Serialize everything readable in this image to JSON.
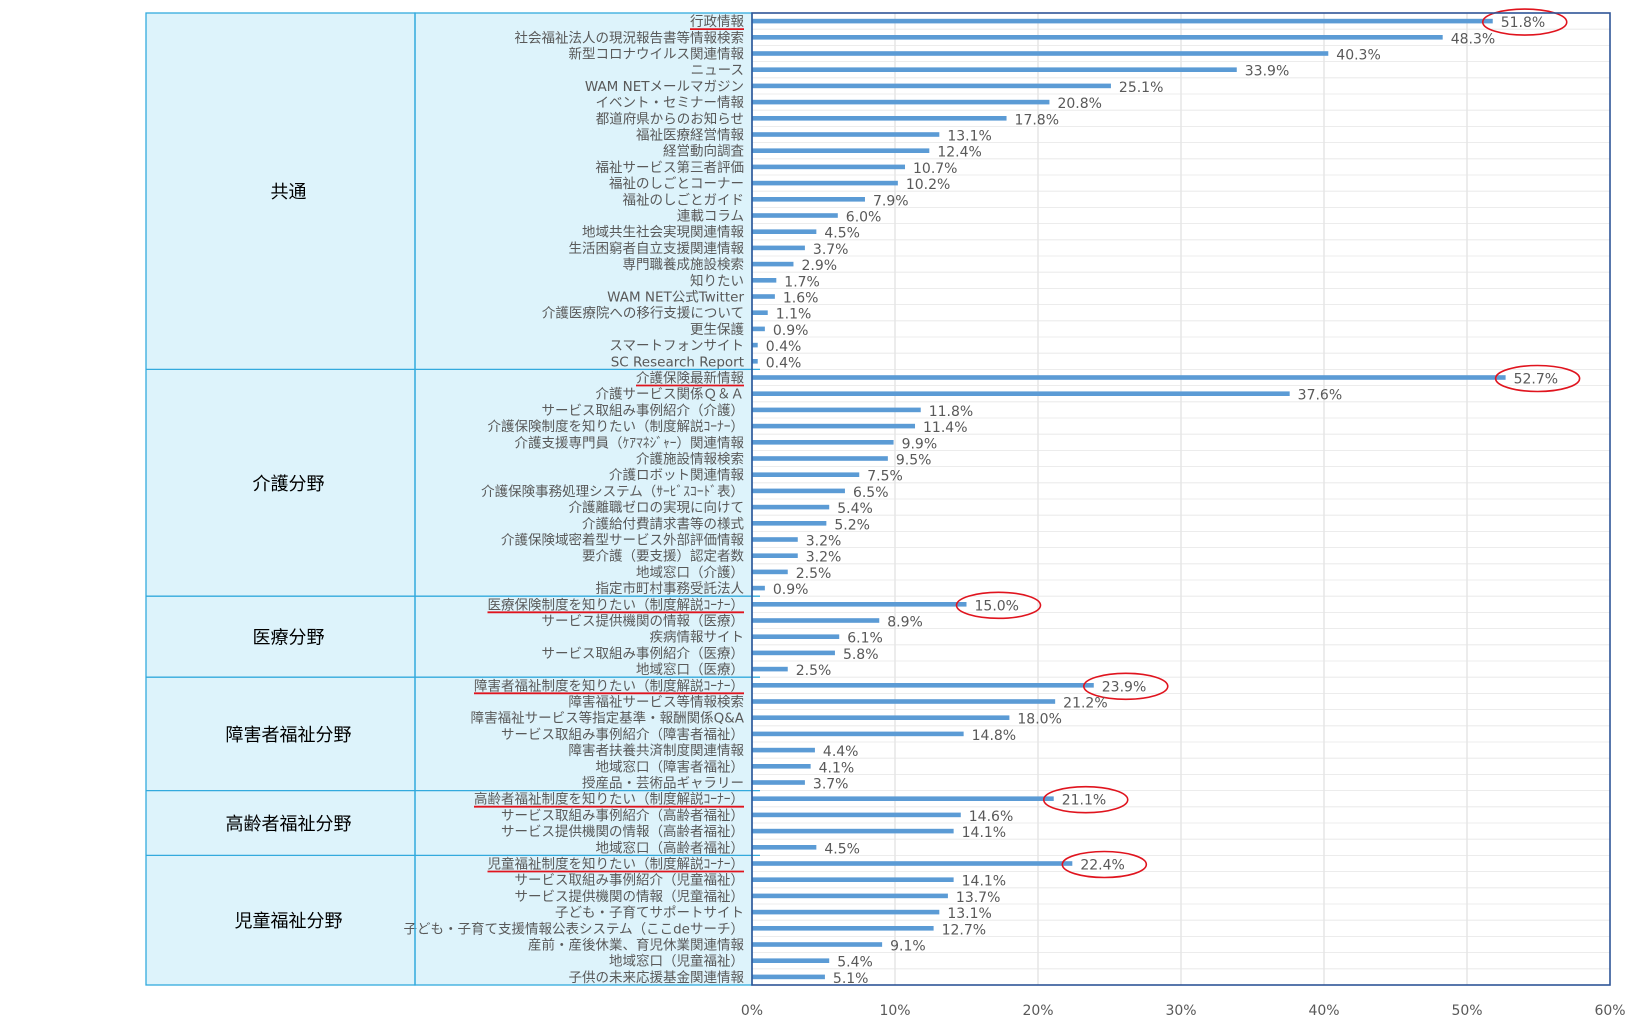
{
  "chart_data": {
    "type": "bar",
    "orientation": "horizontal",
    "xlim": [
      0,
      60
    ],
    "x_ticks": [
      "0%",
      "10%",
      "20%",
      "30%",
      "40%",
      "50%",
      "60%"
    ],
    "grid": "vertical",
    "bar_color": "#5b9bd5",
    "highlight_color": "#e0141e",
    "group_bg_color": "#ddf3fb",
    "group_border_color": "#33aadd",
    "groups": [
      {
        "name": "共通",
        "items": [
          {
            "label": "行政情報",
            "value": 51.8,
            "value_label": "51.8%",
            "highlight": true
          },
          {
            "label": "社会福祉法人の現況報告書等情報検索",
            "value": 48.3,
            "value_label": "48.3%"
          },
          {
            "label": "新型コロナウイルス関連情報",
            "value": 40.3,
            "value_label": "40.3%"
          },
          {
            "label": "ニュース",
            "value": 33.9,
            "value_label": "33.9%"
          },
          {
            "label": "WAM NETメールマガジン",
            "value": 25.1,
            "value_label": "25.1%"
          },
          {
            "label": "イベント・セミナー情報",
            "value": 20.8,
            "value_label": "20.8%"
          },
          {
            "label": "都道府県からのお知らせ",
            "value": 17.8,
            "value_label": "17.8%"
          },
          {
            "label": "福祉医療経営情報",
            "value": 13.1,
            "value_label": "13.1%"
          },
          {
            "label": "経営動向調査",
            "value": 12.4,
            "value_label": "12.4%"
          },
          {
            "label": "福祉サービス第三者評価",
            "value": 10.7,
            "value_label": "10.7%"
          },
          {
            "label": "福祉のしごとコーナー",
            "value": 10.2,
            "value_label": "10.2%"
          },
          {
            "label": "福祉のしごとガイド",
            "value": 7.9,
            "value_label": "7.9%"
          },
          {
            "label": "連載コラム",
            "value": 6.0,
            "value_label": "6.0%"
          },
          {
            "label": "地域共生社会実現関連情報",
            "value": 4.5,
            "value_label": "4.5%"
          },
          {
            "label": "生活困窮者自立支援関連情報",
            "value": 3.7,
            "value_label": "3.7%"
          },
          {
            "label": "専門職養成施設検索",
            "value": 2.9,
            "value_label": "2.9%"
          },
          {
            "label": "知りたい",
            "value": 1.7,
            "value_label": "1.7%"
          },
          {
            "label": "WAM NET公式Twitter",
            "value": 1.6,
            "value_label": "1.6%"
          },
          {
            "label": "介護医療院への移行支援について",
            "value": 1.1,
            "value_label": "1.1%"
          },
          {
            "label": "更生保護",
            "value": 0.9,
            "value_label": "0.9%"
          },
          {
            "label": "スマートフォンサイト",
            "value": 0.4,
            "value_label": "0.4%"
          },
          {
            "label": "SC Research Report",
            "value": 0.4,
            "value_label": "0.4%"
          }
        ]
      },
      {
        "name": "介護分野",
        "items": [
          {
            "label": "介護保険最新情報",
            "value": 52.7,
            "value_label": "52.7%",
            "highlight": true
          },
          {
            "label": "介護サービス関係Ｑ＆Ａ",
            "value": 37.6,
            "value_label": "37.6%"
          },
          {
            "label": "サービス取組み事例紹介（介護）",
            "value": 11.8,
            "value_label": "11.8%"
          },
          {
            "label": "介護保険制度を知りたい（制度解説ｺｰﾅｰ）",
            "value": 11.4,
            "value_label": "11.4%"
          },
          {
            "label": "介護支援専門員（ｹｱﾏﾈｼﾞｬｰ）関連情報",
            "value": 9.9,
            "value_label": "9.9%"
          },
          {
            "label": "介護施設情報検索",
            "value": 9.5,
            "value_label": "9.5%"
          },
          {
            "label": "介護ロボット関連情報",
            "value": 7.5,
            "value_label": "7.5%"
          },
          {
            "label": "介護保険事務処理システム（ｻｰﾋﾞｽｺｰﾄﾞ表）",
            "value": 6.5,
            "value_label": "6.5%"
          },
          {
            "label": "介護離職ゼロの実現に向けて",
            "value": 5.4,
            "value_label": "5.4%"
          },
          {
            "label": "介護給付費請求書等の様式",
            "value": 5.2,
            "value_label": "5.2%"
          },
          {
            "label": "介護保険域密着型サービス外部評価情報",
            "value": 3.2,
            "value_label": "3.2%"
          },
          {
            "label": "要介護（要支援）認定者数",
            "value": 3.2,
            "value_label": "3.2%"
          },
          {
            "label": "地域窓口（介護）",
            "value": 2.5,
            "value_label": "2.5%"
          },
          {
            "label": "指定市町村事務受託法人",
            "value": 0.9,
            "value_label": "0.9%"
          }
        ]
      },
      {
        "name": "医療分野",
        "items": [
          {
            "label": "医療保険制度を知りたい（制度解説ｺｰﾅｰ）",
            "value": 15.0,
            "value_label": "15.0%",
            "highlight": true
          },
          {
            "label": "サービス提供機関の情報（医療）",
            "value": 8.9,
            "value_label": "8.9%"
          },
          {
            "label": "疾病情報サイト",
            "value": 6.1,
            "value_label": "6.1%"
          },
          {
            "label": "サービス取組み事例紹介（医療）",
            "value": 5.8,
            "value_label": "5.8%"
          },
          {
            "label": "地域窓口（医療）",
            "value": 2.5,
            "value_label": "2.5%"
          }
        ]
      },
      {
        "name": "障害者福祉分野",
        "items": [
          {
            "label": "障害者福祉制度を知りたい（制度解説ｺｰﾅｰ）",
            "value": 23.9,
            "value_label": "23.9%",
            "highlight": true
          },
          {
            "label": "障害福祉サービス等情報検索",
            "value": 21.2,
            "value_label": "21.2%"
          },
          {
            "label": "障害福祉サービス等指定基準・報酬関係Q&A",
            "value": 18.0,
            "value_label": "18.0%"
          },
          {
            "label": "サービス取組み事例紹介（障害者福祉）",
            "value": 14.8,
            "value_label": "14.8%"
          },
          {
            "label": "障害者扶養共済制度関連情報",
            "value": 4.4,
            "value_label": "4.4%"
          },
          {
            "label": "地域窓口（障害者福祉）",
            "value": 4.1,
            "value_label": "4.1%"
          },
          {
            "label": "授産品・芸術品ギャラリー",
            "value": 3.7,
            "value_label": "3.7%"
          }
        ]
      },
      {
        "name": "高齢者福祉分野",
        "items": [
          {
            "label": "高齢者福祉制度を知りたい（制度解説ｺｰﾅｰ）",
            "value": 21.1,
            "value_label": "21.1%",
            "highlight": true
          },
          {
            "label": "サービス取組み事例紹介（高齢者福祉）",
            "value": 14.6,
            "value_label": "14.6%"
          },
          {
            "label": "サービス提供機関の情報（高齢者福祉）",
            "value": 14.1,
            "value_label": "14.1%"
          },
          {
            "label": "地域窓口（高齢者福祉）",
            "value": 4.5,
            "value_label": "4.5%"
          }
        ]
      },
      {
        "name": "児童福祉分野",
        "items": [
          {
            "label": "児童福祉制度を知りたい（制度解説ｺｰﾅｰ）",
            "value": 22.4,
            "value_label": "22.4%",
            "highlight": true
          },
          {
            "label": "サービス取組み事例紹介（児童福祉）",
            "value": 14.1,
            "value_label": "14.1%"
          },
          {
            "label": "サービス提供機関の情報（児童福祉）",
            "value": 13.7,
            "value_label": "13.7%"
          },
          {
            "label": "子ども・子育てサポートサイト",
            "value": 13.1,
            "value_label": "13.1%"
          },
          {
            "label": "子ども・子育て支援情報公表システム（ここdeサーチ）",
            "value": 12.7,
            "value_label": "12.7%"
          },
          {
            "label": "産前・産後休業、育児休業関連情報",
            "value": 9.1,
            "value_label": "9.1%"
          },
          {
            "label": "地域窓口（児童福祉）",
            "value": 5.4,
            "value_label": "5.4%"
          },
          {
            "label": "子供の未来応援基金関連情報",
            "value": 5.1,
            "value_label": "5.1%"
          }
        ]
      }
    ]
  }
}
